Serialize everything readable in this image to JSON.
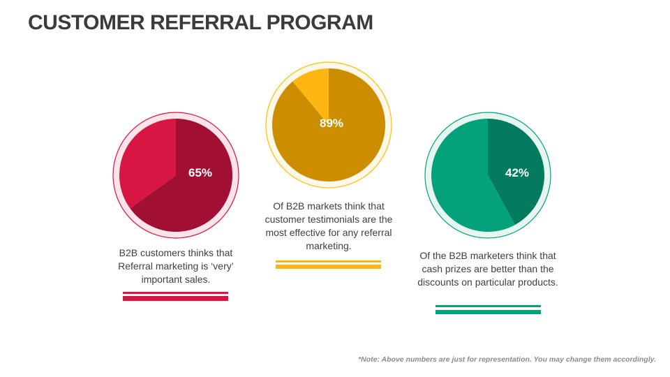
{
  "title": "CUSTOMER REFERRAL PROGRAM",
  "note": "*Note: Above numbers are just for representation. You may change them accordingly.",
  "chart_data": [
    {
      "type": "pie",
      "label": "65%",
      "value": 65,
      "remainder": 35,
      "description": "B2B customers thinks that Referral marketing is ‘very’ important sales.",
      "colors": {
        "value": "#A10F33",
        "remainder": "#D81643",
        "ring": "#FCE4EA",
        "border": "#D81643"
      }
    },
    {
      "type": "pie",
      "label": "89%",
      "value": 89,
      "remainder": 11,
      "description": "Of B2B markets think that customer testimonials are the most effective for any referral marketing.",
      "colors": {
        "value": "#CC8E00",
        "remainder": "#FFB612",
        "ring": "#FFF7E8",
        "border": "#FFC000"
      }
    },
    {
      "type": "pie",
      "label": "42%",
      "value": 42,
      "remainder": 58,
      "description": "Of the B2B marketers think that cash prizes are better than the discounts on particular products.",
      "colors": {
        "value": "#047A5E",
        "remainder": "#05A17B",
        "ring": "#E6F7F2",
        "border": "#05A17B"
      }
    }
  ]
}
